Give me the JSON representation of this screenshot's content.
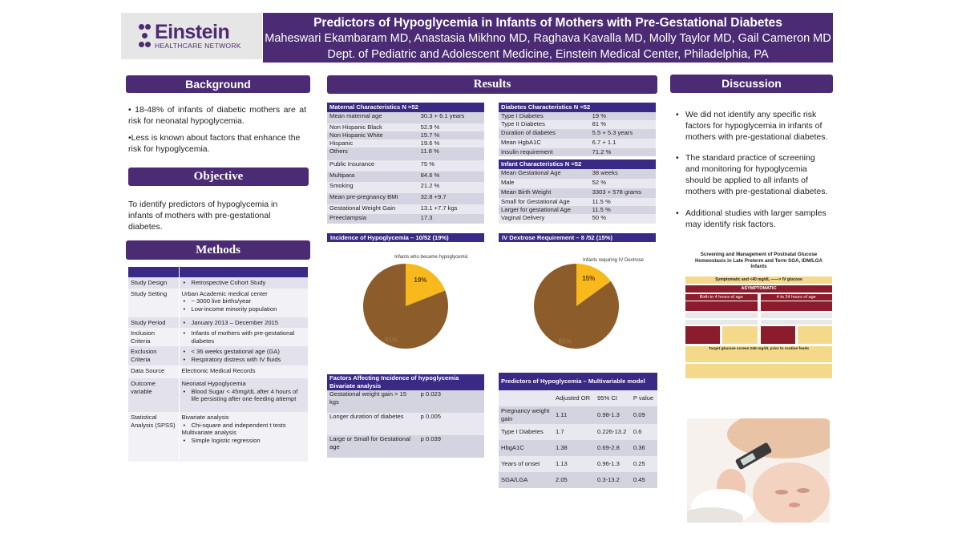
{
  "header": {
    "title": "Predictors of Hypoglycemia in Infants of Mothers with Pre-Gestational Diabetes",
    "authors": "Maheswari Ekambaram MD, Anastasia Mikhno MD, Raghava Kavalla MD, Molly Taylor MD, Gail Cameron MD",
    "department": "Dept. of Pediatric and Adolescent Medicine, Einstein Medical Center, Philadelphia, PA"
  },
  "logo": {
    "name": "Einstein",
    "subtitle": "HEALTHCARE NETWORK"
  },
  "background": {
    "heading": "Background",
    "points": [
      "• 18-48% of infants of diabetic mothers are at risk for neonatal hypoglycemia.",
      "•Less is known about factors that enhance the risk for hypoglycemia."
    ]
  },
  "objective": {
    "heading": "Objective",
    "text": "To identify predictors of hypoglycemia in infants of mothers with pre-gestational diabetes."
  },
  "methods": {
    "heading": "Methods",
    "rows": [
      {
        "label": "Study Design",
        "items": [
          {
            "b": true,
            "t": "Retrospective Cohort Study"
          }
        ]
      },
      {
        "label": "Study Setting",
        "items": [
          {
            "b": false,
            "t": "Urban Academic medical center"
          },
          {
            "b": true,
            "t": "~ 3000 live births/year"
          },
          {
            "b": true,
            "t": "Low-income minority population"
          }
        ]
      },
      {
        "label": "Study Period",
        "items": [
          {
            "b": true,
            "t": "January 2013 – December 2015"
          }
        ]
      },
      {
        "label": "Inclusion Criteria",
        "items": [
          {
            "b": true,
            "t": "Infants of mothers with pre-gestational diabetes"
          }
        ]
      },
      {
        "label": "Exclusion Criteria",
        "items": [
          {
            "b": true,
            "t": "< 36 weeks gestational age (GA)"
          },
          {
            "b": true,
            "t": "Respiratory distress with IV fluids"
          }
        ]
      },
      {
        "label": "Data Source",
        "items": [
          {
            "b": false,
            "t": "Electronic Medical Records"
          }
        ]
      },
      {
        "label": "Outcome variable",
        "items": [
          {
            "b": false,
            "t": "Neonatal Hypoglycemia"
          },
          {
            "b": true,
            "t": "Blood Sugar < 45mg/dL after 4 hours of life persisting after one feeding attempt"
          }
        ]
      },
      {
        "label": "Statistical Analysis (SPSS)",
        "items": [
          {
            "b": false,
            "t": "Bivariate analysis"
          },
          {
            "b": true,
            "t": "Chi-square and independent t tests"
          },
          {
            "b": false,
            "t": "Multivariate analysis"
          },
          {
            "b": true,
            "t": "Simple logistic regression"
          }
        ]
      }
    ]
  },
  "results": {
    "heading": "Results",
    "maternal": {
      "header": "Maternal Characteristics  N =52",
      "rows": [
        [
          "Mean maternal age",
          "30.3 + 6.1 years"
        ],
        [
          "Non Hispanic Black",
          "52.9 %"
        ],
        [
          "Non Hispanic White",
          "15.7 %"
        ],
        [
          "Hispanic",
          "19.6 %"
        ],
        [
          "Others",
          "11.8 %"
        ],
        [
          "Public Insurance",
          "75 %"
        ],
        [
          "Multipara",
          "84.6 %"
        ],
        [
          "Smoking",
          "21.2 %"
        ],
        [
          "Mean pre-pregnancy BMI",
          "32.8 +9.7"
        ],
        [
          "Gestational Weight Gain",
          "13.1 +7.7 kgs"
        ],
        [
          "Preeclampsia",
          "17.3"
        ]
      ]
    },
    "diabetes": {
      "header": "Diabetes Characteristics N =52",
      "rows": [
        [
          "Type I Diabetes",
          "19 %"
        ],
        [
          "Type II Diabetes",
          "81 %"
        ],
        [
          "Duration of diabetes",
          "5.5 + 5.3 years"
        ],
        [
          "Mean HgbA1C",
          "6.7 + 1.1"
        ],
        [
          "Insulin requirement",
          "71.2 %"
        ]
      ]
    },
    "infant": {
      "header": "Infant Characteristics  N =52",
      "rows": [
        [
          "Mean Gestational Age",
          "38 weeks"
        ],
        [
          "Male",
          "52 %"
        ],
        [
          "Mean Birth Weight",
          "3303 + 578 grams"
        ],
        [
          "Small for Gestational Age",
          "11.5 %"
        ],
        [
          "Larger for gestational Age",
          "11.5 %"
        ],
        [
          "Vaginal Delivery",
          "50 %"
        ]
      ]
    },
    "factors": {
      "header": "Factors Affecting Incidence of hypoglycemia Bivariate analysis",
      "rows": [
        [
          "Gestational weight gain > 15 kgs",
          "p 0.023"
        ],
        [
          "Longer duration of diabetes",
          "p 0.005"
        ],
        [
          "Large or Small for Gestational age",
          "p 0.039"
        ]
      ]
    },
    "predictors": {
      "header": "Predictors of Hypoglycemia – Multivariable model",
      "columns": [
        "",
        "Adjusted OR",
        "95% CI",
        "P value"
      ],
      "rows": [
        [
          "Pregnancy weight gain",
          "1.11",
          "0.98-1.3",
          "0.09"
        ],
        [
          "Type I Diabetes",
          "1.7",
          "0.226-13.2",
          "0.6"
        ],
        [
          "HbgA1C",
          "1.38",
          "0.69-2.8",
          "0.36"
        ],
        [
          "Years of onset",
          "1.13",
          "0.96-1.3",
          "0.25"
        ],
        [
          "SGA/LGA",
          "2.05",
          "0.3-13.2",
          "0.45"
        ]
      ]
    }
  },
  "chart_data": [
    {
      "type": "pie",
      "heading": "Incidence of Hypoglycemia – 10/52  (19%)",
      "title": "Infants who became hypoglycemic",
      "categories": [
        "",
        ""
      ],
      "values": [
        19,
        81
      ],
      "labels": [
        "19%",
        "81%"
      ],
      "colors": [
        "#f7b91b",
        "#8c5c2b"
      ]
    },
    {
      "type": "pie",
      "heading": "IV Dextrose Requirement – 8 /52  (15%)",
      "title": "Infants requiring IV Dextrose",
      "categories": [
        "",
        ""
      ],
      "values": [
        15,
        85
      ],
      "labels": [
        "15%",
        "85%"
      ],
      "colors": [
        "#f7b91b",
        "#8c5c2b"
      ]
    }
  ],
  "discussion": {
    "heading": "Discussion",
    "points": [
      "We did not identify any specific risk factors for hypoglycemia in infants of mothers with pre-gestational diabetes.",
      "The standard practice of screening and monitoring for hypoglycemia should be applied to all infants of mothers with pre-gestational diabetes.",
      "Additional studies with larger samples may identify risk factors."
    ]
  },
  "guideline": {
    "title": "Screening and Management of Postnatal Glucose Homeostasis in Late Preterm and Term SGA, IDM/LGA Infants",
    "symptomatic": "Symptomatic and <40 mg/dL ——> IV glucose",
    "asymptomatic": "ASYMPTOMATIC",
    "col1": "Birth to 4 hours of age",
    "col2": "4 to 24 hours of age",
    "target": "Target glucose screen ≥45 mg/dL prior to routine feeds"
  },
  "colors": {
    "brand": "#4b2c74",
    "table_header": "#3a2a85",
    "pie_minor": "#f7b91b",
    "pie_major": "#8c5c2b"
  }
}
